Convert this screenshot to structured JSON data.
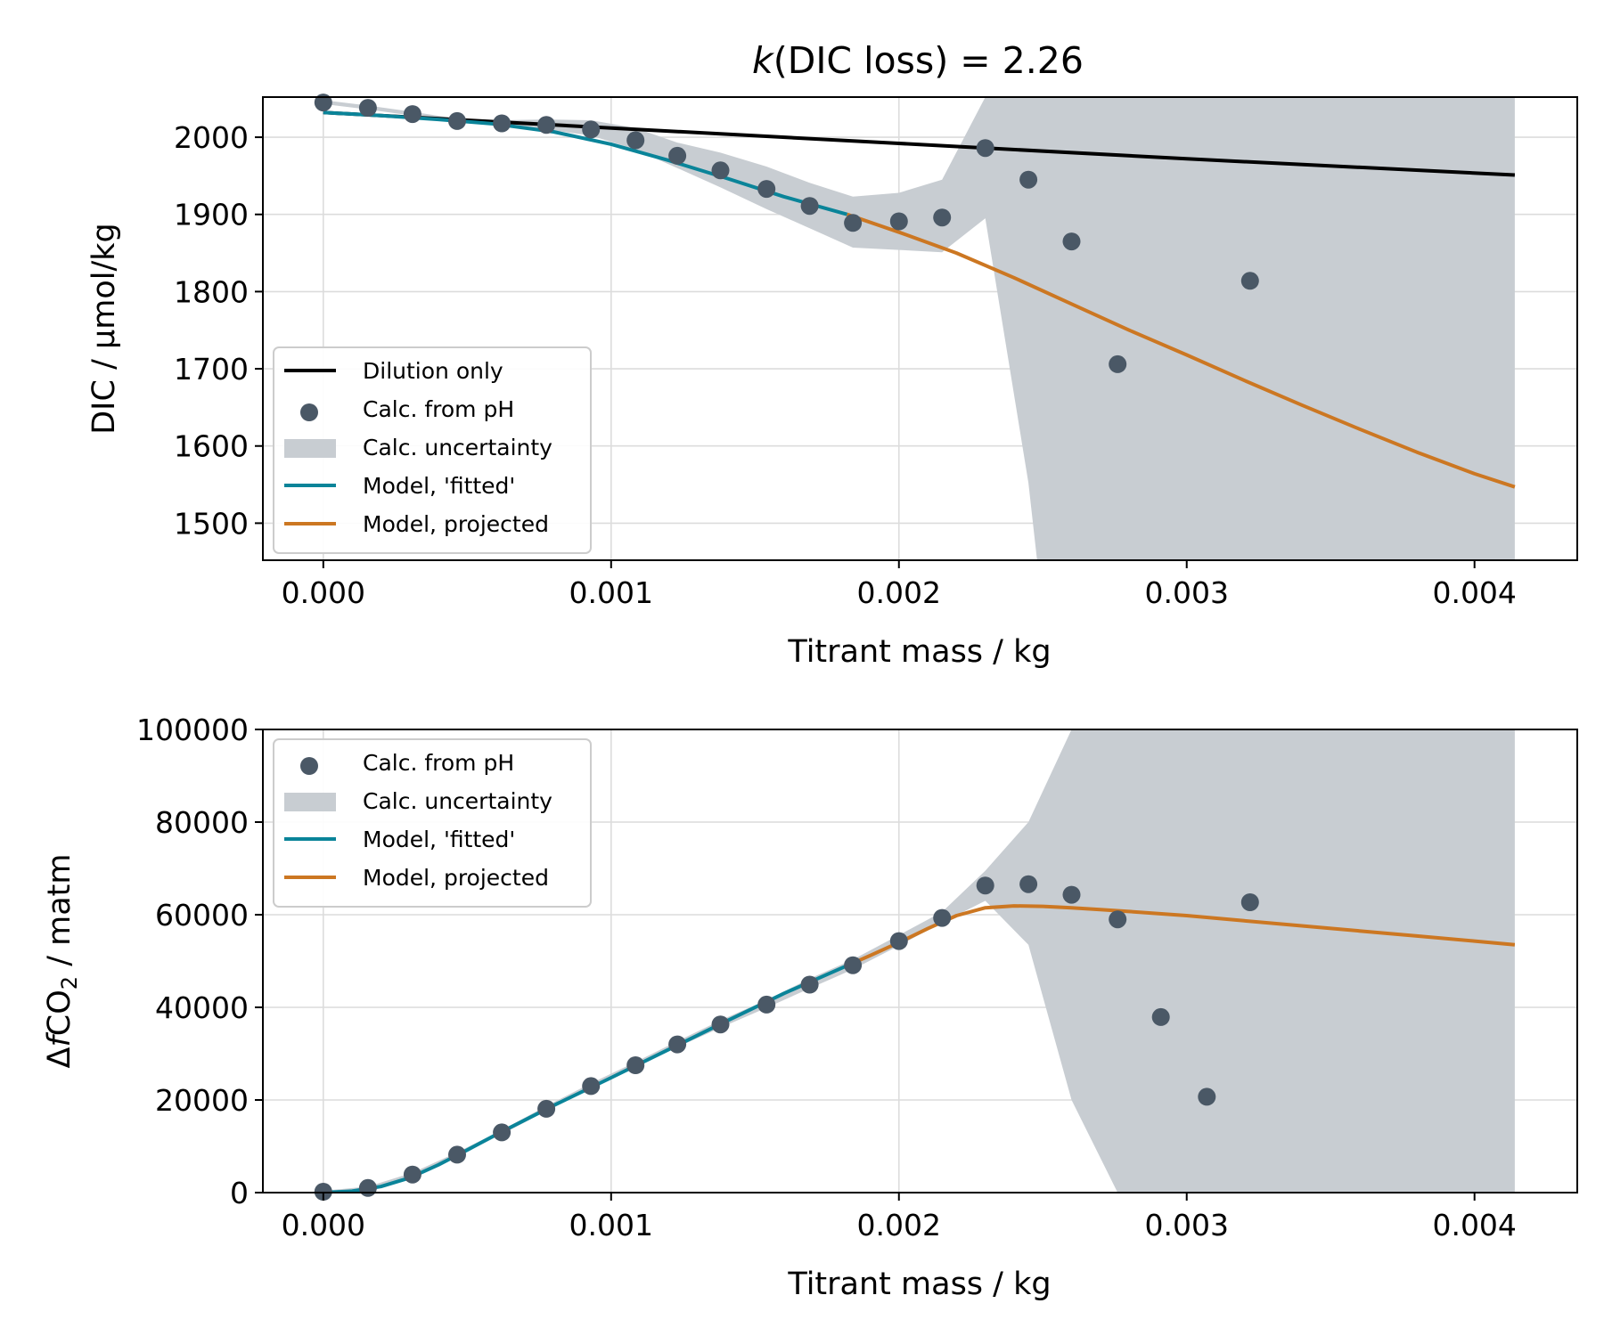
{
  "figure": {
    "title_italic": "k",
    "title_rest": "(DIC loss) = 2.26"
  },
  "colors": {
    "points": "#4a5866",
    "uncertainty": "#c8cdd2",
    "fitted": "#0a8499",
    "projected": "#cc7722",
    "dilution": "#000000"
  },
  "chart_data": [
    {
      "type": "line",
      "xlabel": "Titrant mass / kg",
      "ylabel": "DIC / μmol/kg",
      "xlim": [
        -0.00021,
        0.004357
      ],
      "ylim": [
        1452,
        2052
      ],
      "x_ticks": [
        "0.000",
        "0.001",
        "0.002",
        "0.003",
        "0.004"
      ],
      "x_tick_values": [
        0,
        0.001,
        0.002,
        0.003,
        0.004
      ],
      "y_ticks": [
        "1500",
        "1600",
        "1700",
        "1800",
        "1900",
        "2000"
      ],
      "y_tick_values": [
        1500,
        1600,
        1700,
        1800,
        1900,
        2000
      ],
      "grid": true,
      "legend_position": "lower-left",
      "legend": [
        "Dilution only",
        "Calc. from pH",
        "Calc. uncertainty",
        "Model, 'fitted'",
        "Model, projected"
      ],
      "series": [
        {
          "name": "Dilution only",
          "kind": "line",
          "x": [
            0,
            0.001,
            0.002,
            0.003,
            0.00414
          ],
          "y": [
            2032,
            2012,
            1992,
            1972,
            1951
          ]
        },
        {
          "name": "Calc. from pH",
          "kind": "scatter",
          "x": [
            0,
            0.000155,
            0.00031,
            0.000465,
            0.00062,
            0.000775,
            0.00093,
            0.001085,
            0.00123,
            0.00138,
            0.00154,
            0.00169,
            0.00184,
            0.002,
            0.00215,
            0.0023,
            0.00245,
            0.0026,
            0.00276,
            0.00322
          ],
          "y": [
            2045,
            2038,
            2030,
            2021,
            2018,
            2016,
            2010,
            1996,
            1976,
            1957,
            1933,
            1911,
            1889,
            1891,
            1896,
            1986,
            1945,
            1865,
            1706,
            1814
          ]
        },
        {
          "name": "Calc. uncertainty",
          "kind": "band",
          "x": [
            0,
            0.000155,
            0.00031,
            0.000465,
            0.00062,
            0.000775,
            0.00093,
            0.001085,
            0.00123,
            0.00138,
            0.00154,
            0.00169,
            0.00184,
            0.002,
            0.00215,
            0.0023,
            0.00245,
            0.00248,
            0.00414
          ],
          "lower": [
            2043,
            2036,
            2028,
            2019,
            2015,
            2010,
            2002,
            1984,
            1960,
            1935,
            1907,
            1882,
            1857,
            1854,
            1851,
            1895,
            1552,
            1452,
            1452
          ],
          "upper": [
            2048,
            2041,
            2033,
            2024,
            2022,
            2023,
            2022,
            2012,
            1993,
            1980,
            1962,
            1941,
            1923,
            1928,
            1945,
            2052,
            2052,
            2052,
            2052
          ]
        },
        {
          "name": "Model, 'fitted'",
          "kind": "line",
          "x": [
            0,
            0.0002,
            0.0004,
            0.0006,
            0.0008,
            0.001,
            0.0012,
            0.0014,
            0.0016,
            0.00182
          ],
          "y": [
            2032,
            2028,
            2023,
            2017,
            2007,
            1991,
            1970,
            1947,
            1923,
            1900
          ]
        },
        {
          "name": "Model, projected",
          "kind": "line",
          "x": [
            0.00182,
            0.002,
            0.0022,
            0.0024,
            0.0026,
            0.0028,
            0.003,
            0.0032,
            0.0034,
            0.0036,
            0.0038,
            0.004,
            0.00414
          ],
          "y": [
            1900,
            1877,
            1850,
            1818,
            1784,
            1750,
            1718,
            1685,
            1653,
            1622,
            1592,
            1564,
            1547
          ]
        }
      ]
    },
    {
      "type": "line",
      "xlabel": "Titrant mass / kg",
      "ylabel_prefix": "Δ",
      "ylabel_italic": "f",
      "ylabel_main": "CO",
      "ylabel_sub": "2",
      "ylabel_suffix": " / matm",
      "xlim": [
        -0.00021,
        0.004357
      ],
      "ylim": [
        0,
        100000
      ],
      "x_ticks": [
        "0.000",
        "0.001",
        "0.002",
        "0.003",
        "0.004"
      ],
      "x_tick_values": [
        0,
        0.001,
        0.002,
        0.003,
        0.004
      ],
      "y_ticks": [
        "0",
        "20000",
        "40000",
        "60000",
        "80000",
        "100000"
      ],
      "y_tick_values": [
        0,
        20000,
        40000,
        60000,
        80000,
        100000
      ],
      "grid": true,
      "legend_position": "upper-left",
      "legend": [
        "Calc. from pH",
        "Calc. uncertainty",
        "Model, 'fitted'",
        "Model, projected"
      ],
      "series": [
        {
          "name": "Calc. from pH",
          "kind": "scatter",
          "x": [
            0,
            0.000155,
            0.00031,
            0.000465,
            0.00062,
            0.000775,
            0.00093,
            0.001085,
            0.00123,
            0.00138,
            0.00154,
            0.00169,
            0.00184,
            0.002,
            0.00215,
            0.0023,
            0.00245,
            0.0026,
            0.00276,
            0.00291,
            0.00307,
            0.00322
          ],
          "y": [
            200,
            1000,
            3900,
            8200,
            13000,
            18100,
            23000,
            27500,
            32000,
            36300,
            40600,
            44900,
            49100,
            54300,
            59300,
            66300,
            66600,
            64300,
            59000,
            37900,
            20700,
            62700
          ]
        },
        {
          "name": "Calc. uncertainty",
          "kind": "band",
          "x": [
            0,
            0.000155,
            0.00031,
            0.000465,
            0.00062,
            0.000775,
            0.00093,
            0.001085,
            0.00123,
            0.00138,
            0.00154,
            0.00169,
            0.00184,
            0.002,
            0.00215,
            0.0023,
            0.00245,
            0.0026,
            0.00276,
            0.0028,
            0.00414
          ],
          "lower": [
            0,
            800,
            3600,
            7800,
            12600,
            17600,
            22500,
            27000,
            31400,
            35600,
            39900,
            44100,
            48200,
            53300,
            58300,
            63000,
            53500,
            20000,
            0,
            0,
            0
          ],
          "upper": [
            400,
            1300,
            4300,
            8700,
            13500,
            18700,
            23600,
            28200,
            32700,
            37200,
            41600,
            46200,
            50300,
            55600,
            60600,
            69500,
            80000,
            100000,
            100000,
            100000,
            100000
          ]
        },
        {
          "name": "Model, 'fitted'",
          "kind": "line",
          "x": [
            0,
            0.0001,
            0.0002,
            0.0003,
            0.0004,
            0.0005,
            0.0006,
            0.0008,
            0.001,
            0.0012,
            0.0014,
            0.0016,
            0.00182
          ],
          "y": [
            0,
            300,
            1300,
            3200,
            6000,
            9200,
            12500,
            18800,
            24800,
            30900,
            37000,
            43000,
            49000
          ]
        },
        {
          "name": "Model, projected",
          "kind": "line",
          "x": [
            0.00182,
            0.0019,
            0.002,
            0.0021,
            0.0022,
            0.0023,
            0.0024,
            0.0025,
            0.0026,
            0.0027,
            0.0028,
            0.003,
            0.0032,
            0.0034,
            0.0036,
            0.0038,
            0.004,
            0.00414
          ],
          "y": [
            49000,
            51200,
            54000,
            57000,
            59800,
            61500,
            61900,
            61800,
            61500,
            61100,
            60700,
            59800,
            58700,
            57600,
            56500,
            55400,
            54300,
            53500
          ]
        }
      ]
    }
  ]
}
